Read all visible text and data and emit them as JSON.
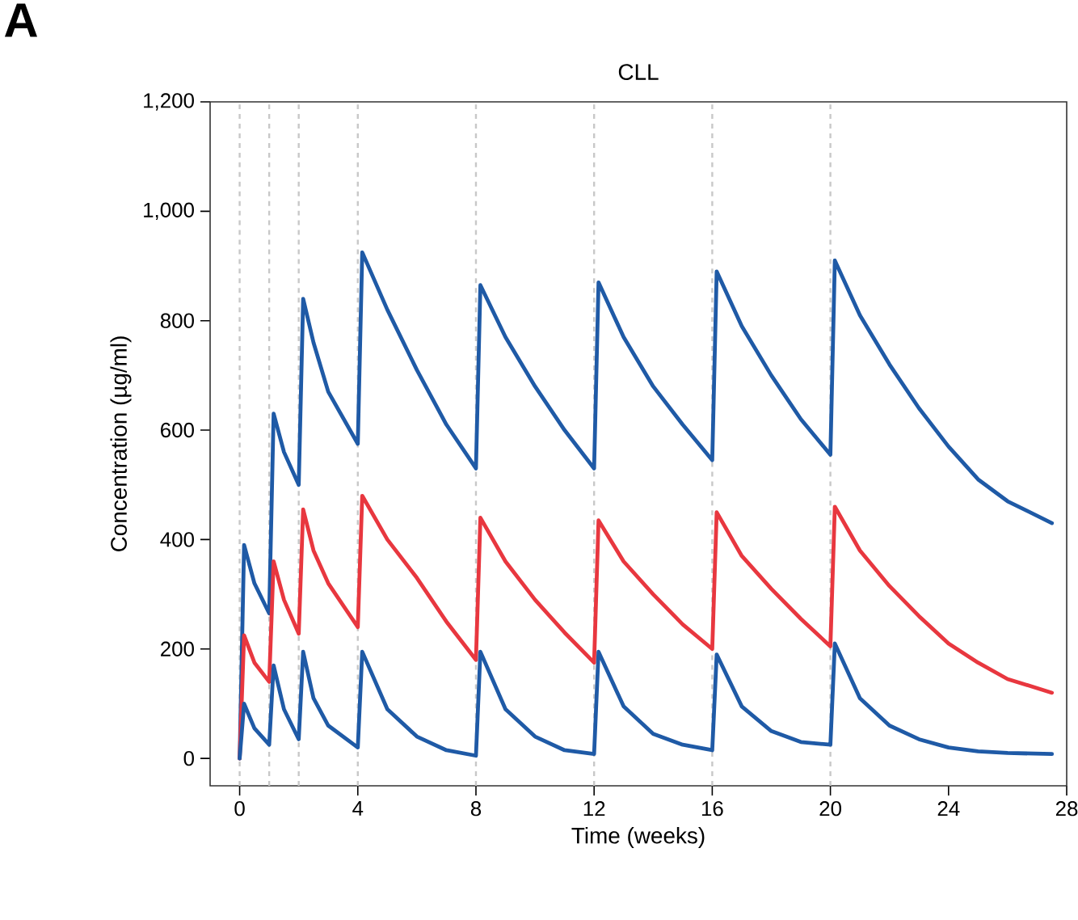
{
  "chart_data": {
    "type": "line",
    "title": "CLL",
    "xlabel": "Time (weeks)",
    "ylabel": "Concentration (µg/ml)",
    "annotations": [
      "A"
    ],
    "xlim": [
      -1,
      28
    ],
    "xticks": [
      0,
      4,
      8,
      12,
      16,
      20,
      24,
      28
    ],
    "ylim": [
      -50,
      1200
    ],
    "yticks": [
      0,
      200,
      400,
      600,
      800,
      {
        "value": 1000,
        "label": "1,000"
      },
      {
        "value": 1200,
        "label": "1,200"
      }
    ],
    "marker": "none",
    "line_style": "solid",
    "ref_lines": [
      {
        "axis": "x",
        "value": 0,
        "color": "#c8c8c8",
        "line_style": "dashed"
      },
      {
        "axis": "x",
        "value": 1,
        "color": "#c8c8c8",
        "line_style": "dashed"
      },
      {
        "axis": "x",
        "value": 2,
        "color": "#c8c8c8",
        "line_style": "dashed"
      },
      {
        "axis": "x",
        "value": 4,
        "color": "#c8c8c8",
        "line_style": "dashed"
      },
      {
        "axis": "x",
        "value": 8,
        "color": "#c8c8c8",
        "line_style": "dashed"
      },
      {
        "axis": "x",
        "value": 12,
        "color": "#c8c8c8",
        "line_style": "dashed"
      },
      {
        "axis": "x",
        "value": 16,
        "color": "#c8c8c8",
        "line_style": "dashed"
      },
      {
        "axis": "x",
        "value": 20,
        "color": "#c8c8c8",
        "line_style": "dashed"
      }
    ],
    "series": [
      {
        "color": "#1f5aa6",
        "x": [
          0,
          0.15,
          0.5,
          1,
          1.15,
          1.5,
          2,
          2.15,
          2.5,
          3,
          4,
          4.15,
          5,
          6,
          7,
          8,
          8.15,
          9,
          10,
          11,
          12,
          12.15,
          13,
          14,
          15,
          16,
          16.15,
          17,
          18,
          19,
          20,
          20.15,
          21,
          22,
          23,
          24,
          25,
          26,
          27.5
        ],
        "values": [
          0,
          390,
          320,
          265,
          630,
          560,
          500,
          840,
          760,
          670,
          575,
          925,
          820,
          710,
          610,
          530,
          865,
          770,
          680,
          600,
          530,
          870,
          770,
          680,
          610,
          545,
          890,
          790,
          700,
          620,
          555,
          910,
          810,
          720,
          640,
          570,
          510,
          470,
          430
        ]
      },
      {
        "color": "#e8373f",
        "x": [
          0,
          0.15,
          0.5,
          1,
          1.15,
          1.5,
          2,
          2.15,
          2.5,
          3,
          4,
          4.15,
          5,
          6,
          7,
          8,
          8.15,
          9,
          10,
          11,
          12,
          12.15,
          13,
          14,
          15,
          16,
          16.15,
          17,
          18,
          19,
          20,
          20.15,
          21,
          22,
          23,
          24,
          25,
          26,
          27.5
        ],
        "values": [
          0,
          225,
          175,
          140,
          360,
          290,
          228,
          455,
          380,
          320,
          240,
          480,
          400,
          330,
          250,
          180,
          440,
          360,
          290,
          230,
          175,
          435,
          360,
          300,
          245,
          200,
          450,
          370,
          310,
          255,
          205,
          460,
          380,
          315,
          260,
          210,
          175,
          145,
          120
        ]
      },
      {
        "color": "#1f5aa6",
        "x": [
          0,
          0.15,
          0.5,
          1,
          1.15,
          1.5,
          2,
          2.15,
          2.5,
          3,
          4,
          4.15,
          5,
          6,
          7,
          8,
          8.15,
          9,
          10,
          11,
          12,
          12.15,
          13,
          14,
          15,
          16,
          16.15,
          17,
          18,
          19,
          20,
          20.15,
          21,
          22,
          23,
          24,
          25,
          26,
          27.5
        ],
        "values": [
          0,
          100,
          55,
          25,
          170,
          90,
          35,
          195,
          110,
          60,
          20,
          195,
          90,
          40,
          15,
          5,
          195,
          90,
          40,
          15,
          8,
          195,
          95,
          45,
          25,
          15,
          190,
          95,
          50,
          30,
          25,
          210,
          110,
          60,
          35,
          20,
          13,
          10,
          8
        ]
      }
    ]
  }
}
